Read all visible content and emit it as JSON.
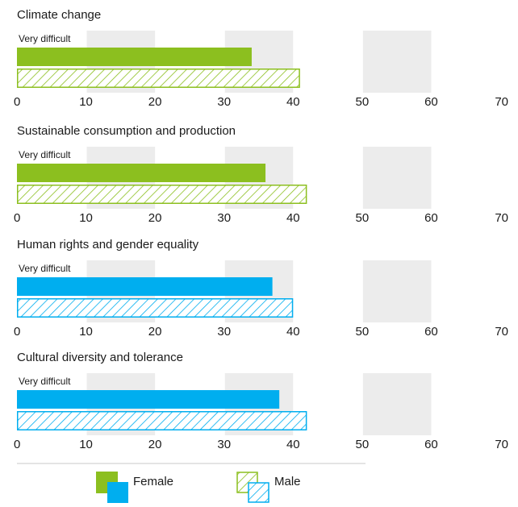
{
  "chart_data": [
    {
      "type": "bar",
      "title": "Climate change",
      "categories": [
        "Very difficult"
      ],
      "series": [
        {
          "name": "Female",
          "values": [
            34
          ]
        },
        {
          "name": "Male",
          "values": [
            41
          ]
        }
      ],
      "xlim": [
        0,
        70
      ],
      "ticks": [
        "0",
        "10",
        "20",
        "30",
        "40",
        "50",
        "60",
        "70"
      ],
      "fill_color": "#8cbf1f",
      "grid": "alternating shaded bands"
    },
    {
      "type": "bar",
      "title": "Sustainable consumption and production",
      "categories": [
        "Very difficult"
      ],
      "series": [
        {
          "name": "Female",
          "values": [
            36
          ]
        },
        {
          "name": "Male",
          "values": [
            42
          ]
        }
      ],
      "xlim": [
        0,
        70
      ],
      "ticks": [
        "0",
        "10",
        "20",
        "30",
        "40",
        "50",
        "60",
        "70"
      ],
      "fill_color": "#8cbf1f",
      "grid": "alternating shaded bands"
    },
    {
      "type": "bar",
      "title": "Human rights and gender equality",
      "categories": [
        "Very difficult"
      ],
      "series": [
        {
          "name": "Female",
          "values": [
            37
          ]
        },
        {
          "name": "Male",
          "values": [
            40
          ]
        }
      ],
      "xlim": [
        0,
        70
      ],
      "ticks": [
        "0",
        "10",
        "20",
        "30",
        "40",
        "50",
        "60",
        "70"
      ],
      "fill_color": "#00aeef",
      "grid": "alternating shaded bands"
    },
    {
      "type": "bar",
      "title": "Cultural diversity and tolerance",
      "categories": [
        "Very difficult"
      ],
      "series": [
        {
          "name": "Female",
          "values": [
            38
          ]
        },
        {
          "name": "Male",
          "values": [
            42
          ]
        }
      ],
      "xlim": [
        0,
        70
      ],
      "ticks": [
        "0",
        "10",
        "20",
        "30",
        "40",
        "50",
        "60",
        "70"
      ],
      "fill_color": "#00aeef",
      "grid": "alternating shaded bands"
    }
  ],
  "legend": {
    "placement": "bottom",
    "female_label": "Female",
    "male_label": "Male",
    "female_pattern": "solid",
    "male_pattern": "hatched"
  },
  "colors": {
    "green": "#8cbf1f",
    "blue": "#00aeef",
    "band": "#ececec"
  }
}
